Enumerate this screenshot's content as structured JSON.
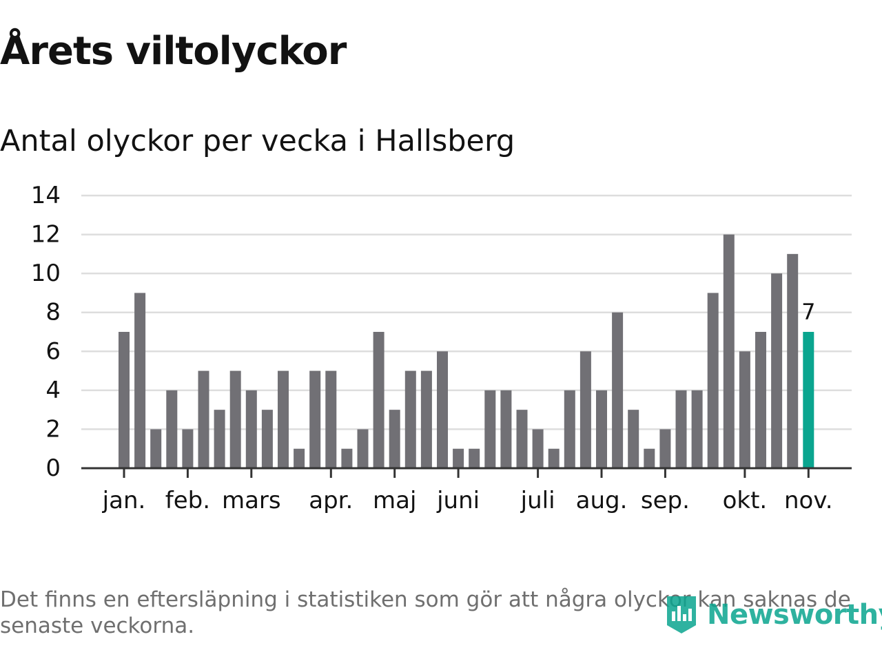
{
  "title": "Årets viltolyckor",
  "subtitle": "Antal olyckor per vecka i Hallsberg",
  "footnote": "Det finns en eftersläpning i statistiken som gör att några olyckor kan saknas de senaste veckorna.",
  "brand": {
    "name": "Newsworthy",
    "icon": "newsworthy-logo-icon"
  },
  "colors": {
    "bar": "#717075",
    "highlight": "#0aa58f",
    "grid": "#dddddd",
    "axis": "#333333",
    "text": "#121212",
    "muted": "#6f6f6f"
  },
  "chart_data": {
    "type": "bar",
    "title": "Antal olyckor per vecka i Hallsberg",
    "xlabel": "",
    "ylabel": "",
    "ylim": [
      0,
      14
    ],
    "yticks": [
      0,
      2,
      4,
      6,
      8,
      10,
      12,
      14
    ],
    "weeks": [
      1,
      2,
      3,
      4,
      5,
      6,
      7,
      8,
      9,
      10,
      11,
      12,
      13,
      14,
      15,
      16,
      17,
      18,
      19,
      20,
      21,
      22,
      23,
      24,
      25,
      26,
      27,
      28,
      29,
      30,
      31,
      32,
      33,
      34,
      35,
      36,
      37,
      38,
      39,
      40,
      41,
      42,
      43,
      44
    ],
    "values": [
      7,
      9,
      2,
      4,
      2,
      5,
      3,
      5,
      4,
      3,
      5,
      1,
      5,
      5,
      1,
      2,
      7,
      3,
      5,
      5,
      6,
      1,
      1,
      4,
      4,
      3,
      2,
      1,
      4,
      6,
      4,
      8,
      3,
      1,
      2,
      4,
      4,
      9,
      12,
      6,
      7,
      10,
      11,
      7
    ],
    "highlight_index": 43,
    "highlight_label": "7",
    "month_ticks": [
      {
        "label": "jan.",
        "week": 1.5
      },
      {
        "label": "feb.",
        "week": 5.5
      },
      {
        "label": "mars",
        "week": 9.5
      },
      {
        "label": "apr.",
        "week": 14.5
      },
      {
        "label": "maj",
        "week": 18.5
      },
      {
        "label": "juni",
        "week": 22.5
      },
      {
        "label": "juli",
        "week": 27.5
      },
      {
        "label": "aug.",
        "week": 31.5
      },
      {
        "label": "sep.",
        "week": 35.5
      },
      {
        "label": "okt.",
        "week": 40.5
      },
      {
        "label": "nov.",
        "week": 44.5
      }
    ]
  }
}
